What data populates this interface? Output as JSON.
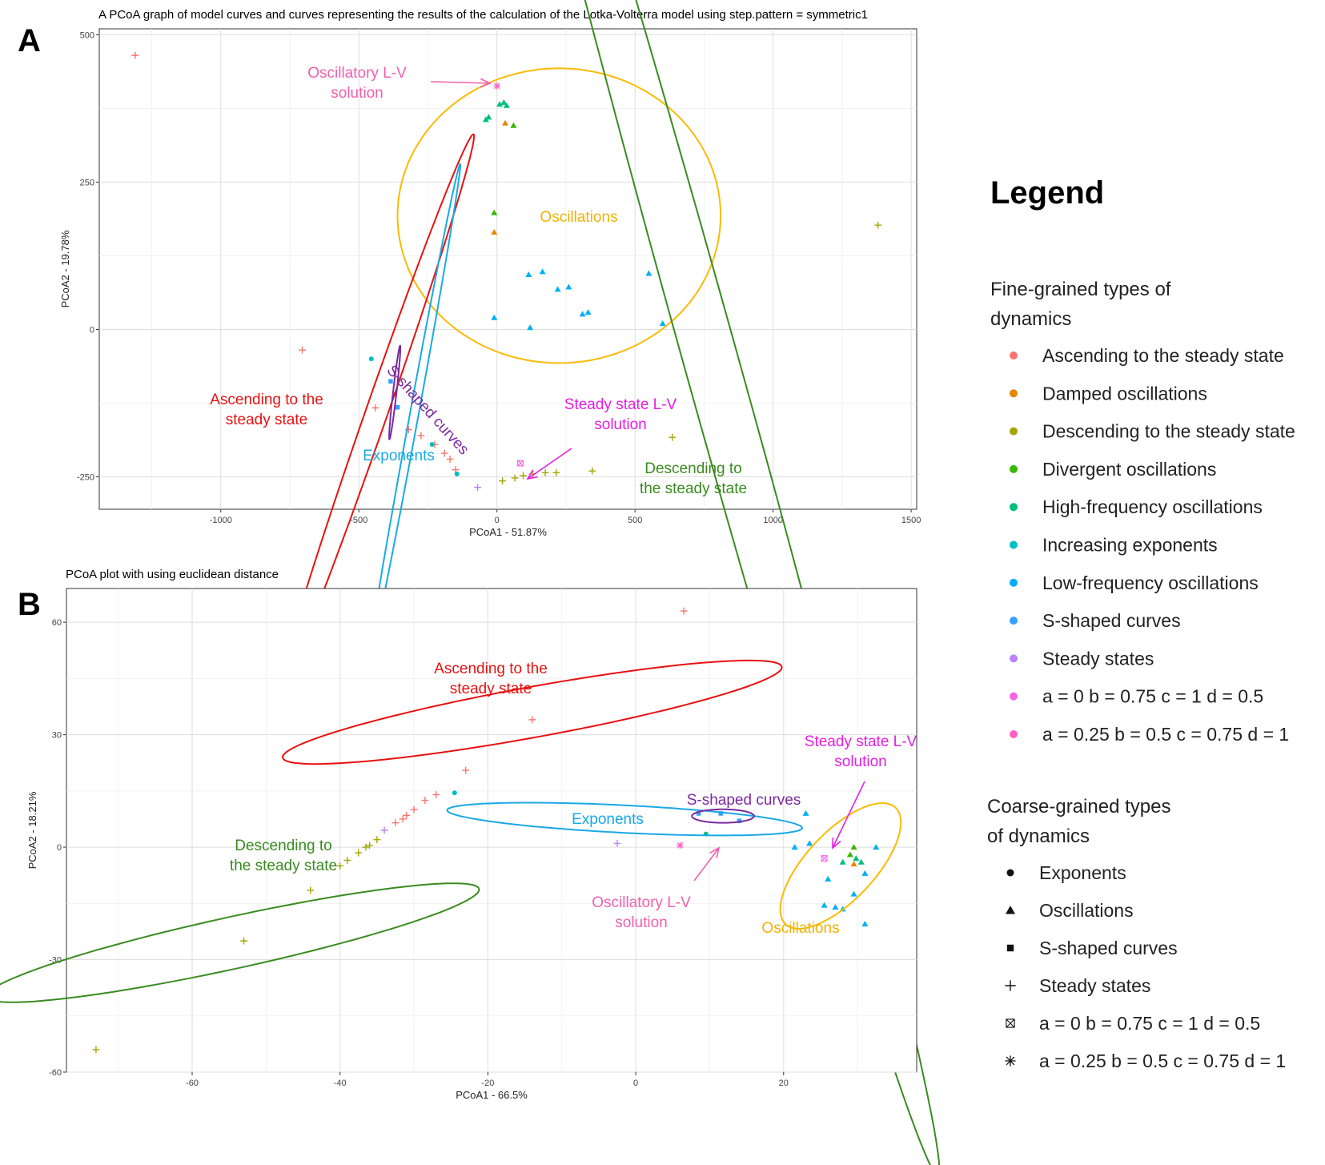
{
  "panels": {
    "A": {
      "letter": "A"
    },
    "B": {
      "letter": "B"
    }
  },
  "chart_data": [
    {
      "type": "scatter",
      "panel": "A",
      "title": "A PCoA graph of model curves and curves representing the results of the calculation of the Lotka-Volterra model using step.pattern = symmetric1",
      "xlabel": "PCoA1 - 51.87%",
      "ylabel": "PCoA2 - 19.78%",
      "xlim": [
        -1440,
        1520
      ],
      "ylim": [
        -305,
        510
      ],
      "xticks": [
        -1000,
        -500,
        0,
        500,
        1000,
        1500
      ],
      "yticks": [
        -250,
        0,
        250,
        500
      ],
      "grid": true,
      "points": [
        {
          "x": -1310,
          "y": 465,
          "cat": "Ascending to the steady state",
          "shape": "plus"
        },
        {
          "x": -705,
          "y": -35,
          "cat": "Ascending to the steady state",
          "shape": "plus"
        },
        {
          "x": -440,
          "y": -133,
          "cat": "Ascending to the steady state",
          "shape": "plus"
        },
        {
          "x": -320,
          "y": -170,
          "cat": "Ascending to the steady state",
          "shape": "plus"
        },
        {
          "x": -275,
          "y": -180,
          "cat": "Ascending to the steady state",
          "shape": "plus"
        },
        {
          "x": -225,
          "y": -195,
          "cat": "Ascending to the steady state",
          "shape": "plus"
        },
        {
          "x": -190,
          "y": -210,
          "cat": "Ascending to the steady state",
          "shape": "plus"
        },
        {
          "x": -170,
          "y": -220,
          "cat": "Ascending to the steady state",
          "shape": "plus"
        },
        {
          "x": -150,
          "y": -238,
          "cat": "Ascending to the steady state",
          "shape": "plus"
        },
        {
          "x": 30,
          "y": 350,
          "cat": "Damped oscillations",
          "shape": "triangle"
        },
        {
          "x": -10,
          "y": 165,
          "cat": "Damped oscillations",
          "shape": "triangle"
        },
        {
          "x": 20,
          "y": -257,
          "cat": "Descending to the steady state",
          "shape": "plus"
        },
        {
          "x": 65,
          "y": -252,
          "cat": "Descending to the steady state",
          "shape": "plus"
        },
        {
          "x": 95,
          "y": -248,
          "cat": "Descending to the steady state",
          "shape": "plus"
        },
        {
          "x": 130,
          "y": -245,
          "cat": "Descending to the steady state",
          "shape": "plus"
        },
        {
          "x": 175,
          "y": -243,
          "cat": "Descending to the steady state",
          "shape": "plus"
        },
        {
          "x": 215,
          "y": -243,
          "cat": "Descending to the steady state",
          "shape": "plus"
        },
        {
          "x": 345,
          "y": -240,
          "cat": "Descending to the steady state",
          "shape": "plus"
        },
        {
          "x": 635,
          "y": -183,
          "cat": "Descending to the steady state",
          "shape": "plus"
        },
        {
          "x": 1380,
          "y": 177,
          "cat": "Descending to the steady state",
          "shape": "plus"
        },
        {
          "x": -10,
          "y": 198,
          "cat": "Divergent oscillations",
          "shape": "triangle"
        },
        {
          "x": 60,
          "y": 346,
          "cat": "Divergent oscillations",
          "shape": "triangle"
        },
        {
          "x": 10,
          "y": 382,
          "cat": "High-frequency oscillations",
          "shape": "triangle"
        },
        {
          "x": 25,
          "y": 385,
          "cat": "High-frequency oscillations",
          "shape": "triangle"
        },
        {
          "x": 35,
          "y": 380,
          "cat": "High-frequency oscillations",
          "shape": "triangle"
        },
        {
          "x": -40,
          "y": 356,
          "cat": "High-frequency oscillations",
          "shape": "triangle"
        },
        {
          "x": -30,
          "y": 360,
          "cat": "High-frequency oscillations",
          "shape": "triangle"
        },
        {
          "x": -455,
          "y": -50,
          "cat": "Increasing exponents",
          "shape": "circle"
        },
        {
          "x": -235,
          "y": -195,
          "cat": "Increasing exponents",
          "shape": "circle"
        },
        {
          "x": -145,
          "y": -245,
          "cat": "Increasing exponents",
          "shape": "circle"
        },
        {
          "x": 115,
          "y": 93,
          "cat": "Low-frequency oscillations",
          "shape": "triangle"
        },
        {
          "x": 165,
          "y": 98,
          "cat": "Low-frequency oscillations",
          "shape": "triangle"
        },
        {
          "x": 220,
          "y": 68,
          "cat": "Low-frequency oscillations",
          "shape": "triangle"
        },
        {
          "x": 260,
          "y": 72,
          "cat": "Low-frequency oscillations",
          "shape": "triangle"
        },
        {
          "x": 310,
          "y": 26,
          "cat": "Low-frequency oscillations",
          "shape": "triangle"
        },
        {
          "x": 330,
          "y": 29,
          "cat": "Low-frequency oscillations",
          "shape": "triangle"
        },
        {
          "x": 550,
          "y": 95,
          "cat": "Low-frequency oscillations",
          "shape": "triangle"
        },
        {
          "x": 600,
          "y": 10,
          "cat": "Low-frequency oscillations",
          "shape": "triangle"
        },
        {
          "x": -10,
          "y": 20,
          "cat": "Low-frequency oscillations",
          "shape": "triangle"
        },
        {
          "x": 120,
          "y": 3,
          "cat": "Low-frequency oscillations",
          "shape": "triangle"
        },
        {
          "x": -385,
          "y": -88,
          "cat": "S-shaped curves",
          "shape": "square"
        },
        {
          "x": -370,
          "y": -110,
          "cat": "S-shaped curves",
          "shape": "square"
        },
        {
          "x": -360,
          "y": -132,
          "cat": "S-shaped curves",
          "shape": "square"
        },
        {
          "x": -70,
          "y": -268,
          "cat": "Steady states",
          "shape": "plus"
        },
        {
          "x": 85,
          "y": -227,
          "cat": "a = 0 b = 0.75 c = 1 d = 0.5",
          "shape": "boxx"
        },
        {
          "x": 0,
          "y": 413,
          "cat": "a = 0.25 b = 0.5 c = 0.75 d = 1",
          "shape": "asterisk"
        }
      ],
      "ellipses": [
        {
          "label": "Oscillations",
          "color": "#fcba03",
          "cx": 225,
          "cy": 193,
          "rx": 585,
          "ry": 250,
          "angle": 0
        },
        {
          "label": "Descending to the steady state",
          "color": "#3a8b20",
          "cx": 770,
          "cy": -45,
          "rx": 1055,
          "ry": 135,
          "angle": -38
        },
        {
          "label": "Ascending to the steady state",
          "color": "#e81111",
          "cx": -435,
          "cy": -140,
          "rx": 415,
          "ry": 48,
          "angle": 32
        },
        {
          "label": "Exponents",
          "color": "#1aa9e6",
          "cx": -300,
          "cy": -145,
          "rx": 260,
          "ry": 26,
          "angle": 50
        },
        {
          "label": "S-shaped curves",
          "color": "#7a2a9e",
          "cx": -370,
          "cy": -107,
          "rx": 42,
          "ry": 12,
          "angle": 62
        }
      ],
      "annotations": [
        {
          "text": [
            "Oscillatory L-V",
            "solution"
          ],
          "color": "#f060b0"
        },
        {
          "text": [
            "Oscillations"
          ],
          "color": "#f2b300"
        },
        {
          "text": [
            "Ascending to the",
            "steady state"
          ],
          "color": "#e81111"
        },
        {
          "text": [
            "S-shaped curves"
          ],
          "color": "#7a2a9e"
        },
        {
          "text": [
            "Exponents"
          ],
          "color": "#1aa9e6"
        },
        {
          "text": [
            "Steady state L-V",
            "solution"
          ],
          "color": "#e61ee6"
        },
        {
          "text": [
            "Descending to",
            "the steady state"
          ],
          "color": "#3a8b20"
        }
      ]
    },
    {
      "type": "scatter",
      "panel": "B",
      "title": "PCoA plot with using euclidean distance",
      "xlabel": "PCoA1 - 66.5%",
      "ylabel": "PCoA2 - 18.21%",
      "xlim": [
        -77,
        38
      ],
      "ylim": [
        -60,
        69
      ],
      "xticks": [
        -60,
        -40,
        -20,
        0,
        20
      ],
      "yticks": [
        -60,
        -30,
        0,
        30,
        60
      ],
      "grid": true,
      "points": [
        {
          "x": 6.5,
          "y": 63,
          "cat": "Ascending to the steady state",
          "shape": "plus"
        },
        {
          "x": -14,
          "y": 34,
          "cat": "Ascending to the steady state",
          "shape": "plus"
        },
        {
          "x": -23,
          "y": 20.5,
          "cat": "Ascending to the steady state",
          "shape": "plus"
        },
        {
          "x": -27,
          "y": 14,
          "cat": "Ascending to the steady state",
          "shape": "plus"
        },
        {
          "x": -28.5,
          "y": 12.5,
          "cat": "Ascending to the steady state",
          "shape": "plus"
        },
        {
          "x": -30,
          "y": 10,
          "cat": "Ascending to the steady state",
          "shape": "plus"
        },
        {
          "x": -31,
          "y": 8.5,
          "cat": "Ascending to the steady state",
          "shape": "plus"
        },
        {
          "x": -31.5,
          "y": 7.5,
          "cat": "Ascending to the steady state",
          "shape": "plus"
        },
        {
          "x": -32.5,
          "y": 6.5,
          "cat": "Ascending to the steady state",
          "shape": "plus"
        },
        {
          "x": -73,
          "y": -54,
          "cat": "Descending to the steady state",
          "shape": "plus"
        },
        {
          "x": -53,
          "y": -25,
          "cat": "Descending to the steady state",
          "shape": "plus"
        },
        {
          "x": -44,
          "y": -11.5,
          "cat": "Descending to the steady state",
          "shape": "plus"
        },
        {
          "x": -40,
          "y": -5,
          "cat": "Descending to the steady state",
          "shape": "plus"
        },
        {
          "x": -39,
          "y": -3.5,
          "cat": "Descending to the steady state",
          "shape": "plus"
        },
        {
          "x": -37.5,
          "y": -1.5,
          "cat": "Descending to the steady state",
          "shape": "plus"
        },
        {
          "x": -36.5,
          "y": 0,
          "cat": "Descending to the steady state",
          "shape": "plus"
        },
        {
          "x": -36,
          "y": 0.5,
          "cat": "Descending to the steady state",
          "shape": "plus"
        },
        {
          "x": -35,
          "y": 2,
          "cat": "Descending to the steady state",
          "shape": "plus"
        },
        {
          "x": -34,
          "y": 4.5,
          "cat": "Steady states",
          "shape": "plus"
        },
        {
          "x": -2.5,
          "y": 1,
          "cat": "Steady states",
          "shape": "plus"
        },
        {
          "x": -24.5,
          "y": 14.5,
          "cat": "Increasing exponents",
          "shape": "circle"
        },
        {
          "x": 9.5,
          "y": 3.5,
          "cat": "High-frequency oscillations",
          "shape": "circle"
        },
        {
          "x": 8.5,
          "y": 9,
          "cat": "S-shaped curves",
          "shape": "square"
        },
        {
          "x": 11.5,
          "y": 9,
          "cat": "S-shaped curves",
          "shape": "square"
        },
        {
          "x": 14,
          "y": 7,
          "cat": "S-shaped curves",
          "shape": "square"
        },
        {
          "x": 29.5,
          "y": -4.5,
          "cat": "Damped oscillations",
          "shape": "triangle"
        },
        {
          "x": 29.5,
          "y": 0,
          "cat": "Divergent oscillations",
          "shape": "triangle"
        },
        {
          "x": 29,
          "y": -2,
          "cat": "Divergent oscillations",
          "shape": "triangle"
        },
        {
          "x": 28,
          "y": -4,
          "cat": "High-frequency oscillations",
          "shape": "triangle"
        },
        {
          "x": 29.8,
          "y": -3,
          "cat": "High-frequency oscillations",
          "shape": "triangle"
        },
        {
          "x": 30.5,
          "y": -4,
          "cat": "High-frequency oscillations",
          "shape": "triangle"
        },
        {
          "x": 23,
          "y": 9,
          "cat": "Low-frequency oscillations",
          "shape": "triangle"
        },
        {
          "x": 21.5,
          "y": 0,
          "cat": "Low-frequency oscillations",
          "shape": "triangle"
        },
        {
          "x": 23.5,
          "y": 1,
          "cat": "Low-frequency oscillations",
          "shape": "triangle"
        },
        {
          "x": 26,
          "y": -8.5,
          "cat": "Low-frequency oscillations",
          "shape": "triangle"
        },
        {
          "x": 25.5,
          "y": -15.5,
          "cat": "Low-frequency oscillations",
          "shape": "triangle"
        },
        {
          "x": 27,
          "y": -16,
          "cat": "Low-frequency oscillations",
          "shape": "triangle"
        },
        {
          "x": 28,
          "y": -16.5,
          "cat": "Low-frequency oscillations",
          "shape": "triangle"
        },
        {
          "x": 29.5,
          "y": -12.5,
          "cat": "Low-frequency oscillations",
          "shape": "triangle"
        },
        {
          "x": 31,
          "y": -7,
          "cat": "Low-frequency oscillations",
          "shape": "triangle"
        },
        {
          "x": 31,
          "y": -20.5,
          "cat": "Low-frequency oscillations",
          "shape": "triangle"
        },
        {
          "x": 32.5,
          "y": 0,
          "cat": "Low-frequency oscillations",
          "shape": "triangle"
        },
        {
          "x": 25.5,
          "y": -3,
          "cat": "a = 0 b = 0.75 c = 1 d = 0.5",
          "shape": "boxx"
        },
        {
          "x": 6,
          "y": 0.5,
          "cat": "a = 0.25 b = 0.5 c = 0.75 d = 1",
          "shape": "asterisk"
        }
      ],
      "ellipses": [
        {
          "label": "Ascending to the steady state",
          "color": "#e81111",
          "cx": -14,
          "cy": 36,
          "rx": 42,
          "ry": 5.5,
          "angle": 38
        },
        {
          "label": "Descending to the steady state",
          "color": "#3a8b20",
          "cx": -54.5,
          "cy": -25.5,
          "rx": 44.5,
          "ry": 5.3,
          "angle": 43
        },
        {
          "label": "Exponents",
          "color": "#1aa9e6",
          "cx": -1.5,
          "cy": 7.5,
          "rx": 24.5,
          "ry": 3.6,
          "angle": -12
        },
        {
          "label": "S-shaped curves",
          "color": "#7a2a9e",
          "cx": 11.8,
          "cy": 8.3,
          "rx": 4.2,
          "ry": 1.8,
          "angle": 0
        },
        {
          "label": "Oscillations",
          "color": "#fcba03",
          "cx": 27.7,
          "cy": -5,
          "rx": 5.8,
          "ry": 17,
          "angle": -10
        }
      ],
      "annotations": [
        {
          "text": [
            "Ascending to the",
            "steady state"
          ],
          "color": "#e81111"
        },
        {
          "text": [
            "Exponents"
          ],
          "color": "#1aa9e6"
        },
        {
          "text": [
            "S-shaped curves"
          ],
          "color": "#7a2a9e"
        },
        {
          "text": [
            "Steady state L-V",
            "solution"
          ],
          "color": "#e61ee6"
        },
        {
          "text": [
            "Descending to",
            "the steady state"
          ],
          "color": "#3a8b20"
        },
        {
          "text": [
            "Oscillatory L-V",
            "solution"
          ],
          "color": "#f060b0"
        },
        {
          "text": [
            "Oscillations"
          ],
          "color": "#f2b300"
        }
      ]
    }
  ],
  "legend": {
    "title": "Legend",
    "fine_title": [
      "Fine-grained types of",
      "dynamics"
    ],
    "fine_items": [
      {
        "label": "Ascending to the steady state",
        "color": "#f8766d"
      },
      {
        "label": "Damped oscillations",
        "color": "#e58700"
      },
      {
        "label": "Descending to the steady state",
        "color": "#a3a500"
      },
      {
        "label": "Divergent oscillations",
        "color": "#39b600"
      },
      {
        "label": "High-frequency oscillations",
        "color": "#00bf7d"
      },
      {
        "label": "Increasing exponents",
        "color": "#00bfc4"
      },
      {
        "label": "Low-frequency oscillations",
        "color": "#00b0f6"
      },
      {
        "label": "S-shaped curves",
        "color": "#35a2ff"
      },
      {
        "label": "Steady states",
        "color": "#b983ff"
      },
      {
        "label": "a = 0 b = 0.75 c = 1 d = 0.5",
        "color": "#f564e3"
      },
      {
        "label": "a = 0.25 b = 0.5 c = 0.75 d = 1",
        "color": "#ff61c3"
      }
    ],
    "coarse_title": [
      "Coarse-grained types",
      "of dynamics"
    ],
    "coarse_items": [
      {
        "label": "Exponents",
        "shape": "circle"
      },
      {
        "label": "Oscillations",
        "shape": "triangle"
      },
      {
        "label": "S-shaped curves",
        "shape": "square"
      },
      {
        "label": "Steady states",
        "shape": "plus"
      },
      {
        "label": "a = 0 b = 0.75 c = 1 d = 0.5",
        "shape": "boxx"
      },
      {
        "label": "a = 0.25 b = 0.5 c = 0.75 d = 1",
        "shape": "asterisk"
      }
    ]
  }
}
